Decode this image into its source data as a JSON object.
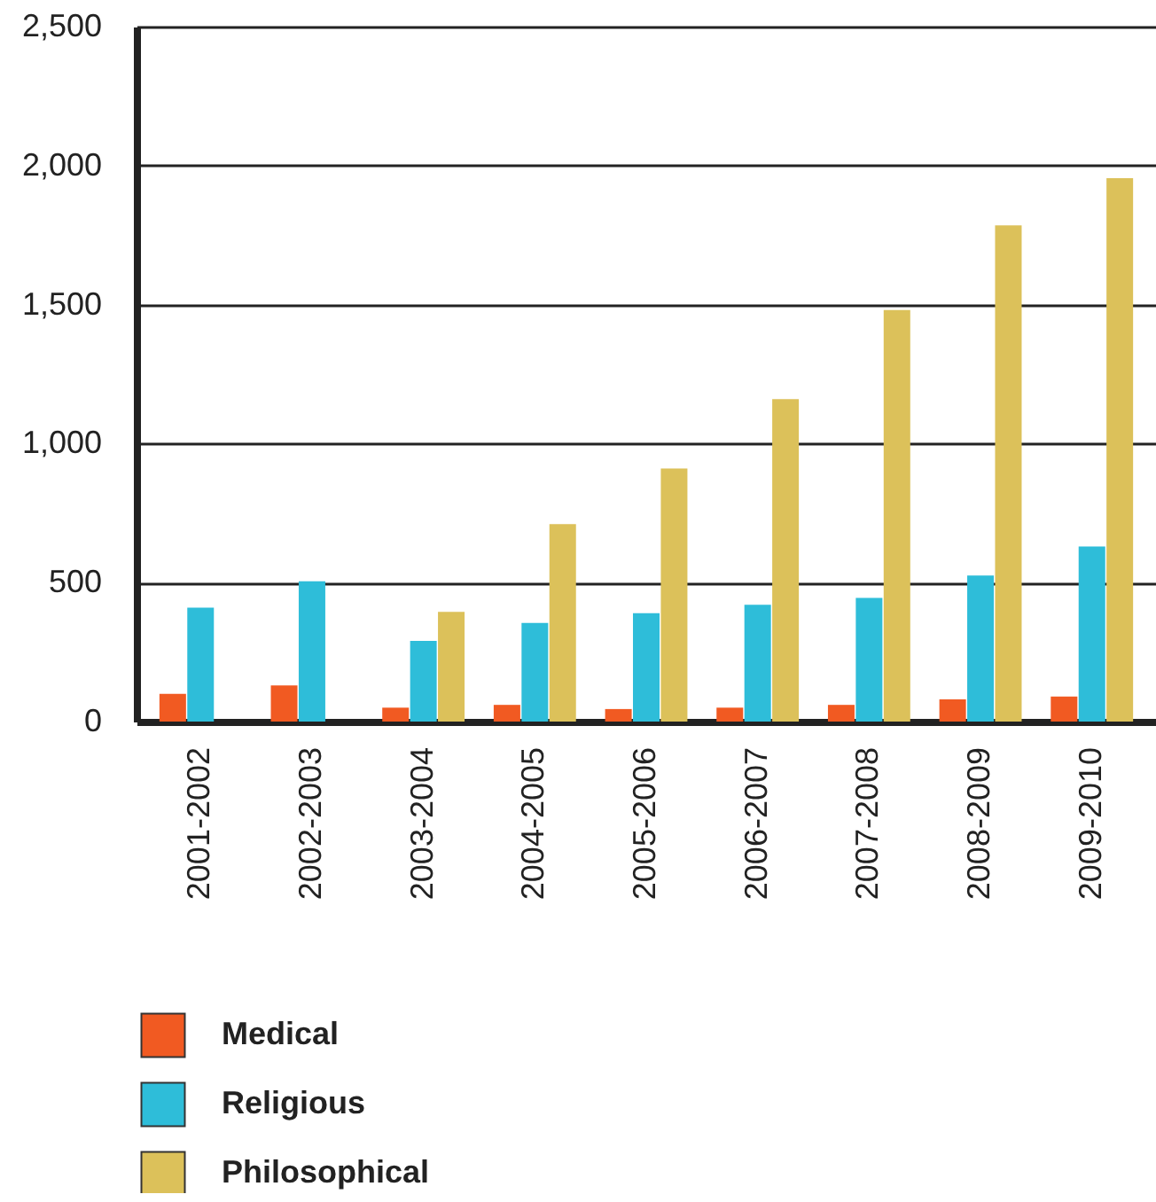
{
  "chart_data": {
    "type": "bar",
    "categories": [
      "2001-2002",
      "2002-2003",
      "2003-2004",
      "2004-2005",
      "2005-2006",
      "2006-2007",
      "2007-2008",
      "2008-2009",
      "2009-2010"
    ],
    "series": [
      {
        "name": "Medical",
        "color": "#f15a22",
        "values": [
          100,
          130,
          50,
          60,
          45,
          50,
          60,
          80,
          90
        ]
      },
      {
        "name": "Religious",
        "color": "#2ebdd9",
        "values": [
          410,
          505,
          290,
          355,
          390,
          420,
          445,
          525,
          630
        ]
      },
      {
        "name": "Philosophical",
        "color": "#dcc15a",
        "values": [
          null,
          null,
          395,
          710,
          910,
          1160,
          1480,
          1785,
          1955
        ]
      }
    ],
    "ylim": [
      0,
      2500
    ],
    "yticks": [
      0,
      {
        "value": 500,
        "label": "500"
      },
      {
        "value": 1000,
        "label": "1,000"
      },
      {
        "value": 1500,
        "label": "1,500"
      },
      {
        "value": 2000,
        "label": "2,000"
      },
      {
        "value": 2500,
        "label": "2,500"
      }
    ],
    "grid": "y",
    "legend": "bottom left"
  }
}
